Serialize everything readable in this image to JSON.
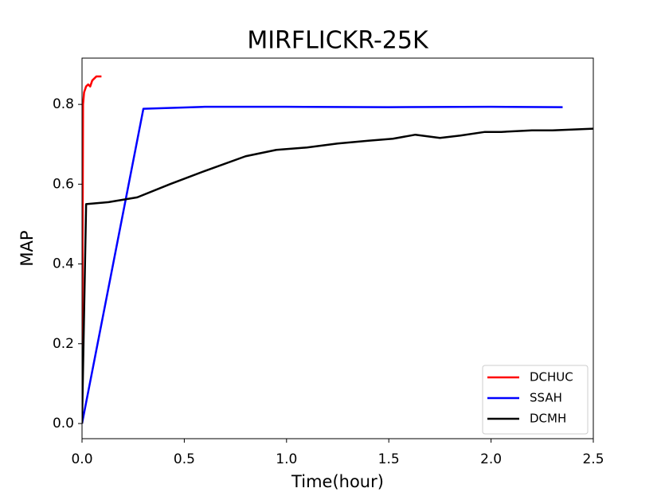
{
  "chart_data": {
    "type": "line",
    "title": "MIRFLICKR-25K",
    "x_label": "Time(hour)",
    "y_label": "MAP",
    "xlim": [
      0,
      2.5
    ],
    "ylim": [
      -0.038,
      0.916
    ],
    "xticks": [
      {
        "value": 0,
        "label": "0.0"
      },
      {
        "value": 0.5,
        "label": "0.5"
      },
      {
        "value": 1,
        "label": "1.0"
      },
      {
        "value": 1.5,
        "label": "1.5"
      },
      {
        "value": 2,
        "label": "2.0"
      },
      {
        "value": 2.5,
        "label": "2.5"
      }
    ],
    "yticks": [
      {
        "value": 0,
        "label": "0.0"
      },
      {
        "value": 0.2,
        "label": "0.2"
      },
      0.4,
      0.6,
      0.8
    ],
    "grid": false,
    "legend": "lower right",
    "series": [
      {
        "name": "DCHUC",
        "color": "#ff0000",
        "x": [
          0,
          0.005,
          0.01,
          0.02,
          0.03,
          0.04,
          0.05,
          0.06,
          0.07,
          0.095
        ],
        "values": [
          0,
          0.8,
          0.83,
          0.845,
          0.85,
          0.845,
          0.86,
          0.865,
          0.87,
          0.87
        ]
      },
      {
        "name": "SSAH",
        "color": "#0000ff",
        "x": [
          0,
          0.3,
          0.6,
          1.0,
          1.5,
          2.0,
          2.35
        ],
        "values": [
          0,
          0.789,
          0.794,
          0.794,
          0.793,
          0.794,
          0.793
        ]
      },
      {
        "name": "DCMH",
        "color": "#000000",
        "x": [
          0,
          0.02,
          0.13,
          0.27,
          0.43,
          0.6,
          0.8,
          0.95,
          1.1,
          1.25,
          1.4,
          1.52,
          1.63,
          1.75,
          1.85,
          1.97,
          2.05,
          2.2,
          2.3,
          2.5
        ],
        "values": [
          0,
          0.55,
          0.555,
          0.567,
          0.6,
          0.633,
          0.67,
          0.686,
          0.692,
          0.702,
          0.709,
          0.714,
          0.724,
          0.716,
          0.722,
          0.731,
          0.731,
          0.735,
          0.735,
          0.739
        ]
      }
    ]
  }
}
